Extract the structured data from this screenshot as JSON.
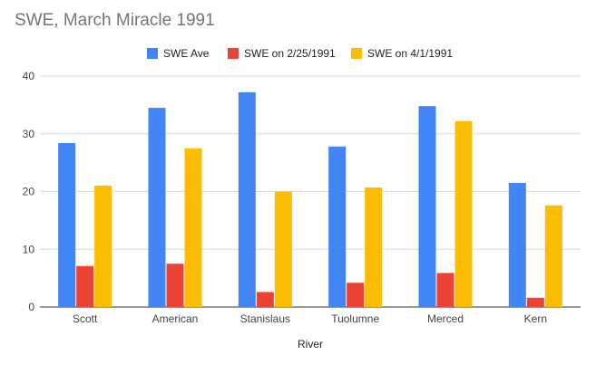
{
  "chart_data": {
    "type": "bar",
    "title": "SWE, March Miracle 1991",
    "xlabel": "River",
    "ylabel": "",
    "ylim": [
      0,
      40
    ],
    "yticks": [
      0,
      10,
      20,
      30,
      40
    ],
    "grid": true,
    "legend_position": "top",
    "categories": [
      "Scott",
      "American",
      "Stanislaus",
      "Tuolumne",
      "Merced",
      "Kern"
    ],
    "series": [
      {
        "name": "SWE Ave",
        "color": "#4285f4",
        "values": [
          28.4,
          34.5,
          37.2,
          27.8,
          34.8,
          21.5
        ]
      },
      {
        "name": "SWE on 2/25/1991",
        "color": "#ea4335",
        "values": [
          7.1,
          7.5,
          2.6,
          4.2,
          5.9,
          1.6
        ]
      },
      {
        "name": "SWE on 4/1/1991",
        "color": "#fbbc04",
        "values": [
          21.0,
          27.5,
          20.0,
          20.7,
          32.2,
          17.6
        ]
      }
    ]
  }
}
